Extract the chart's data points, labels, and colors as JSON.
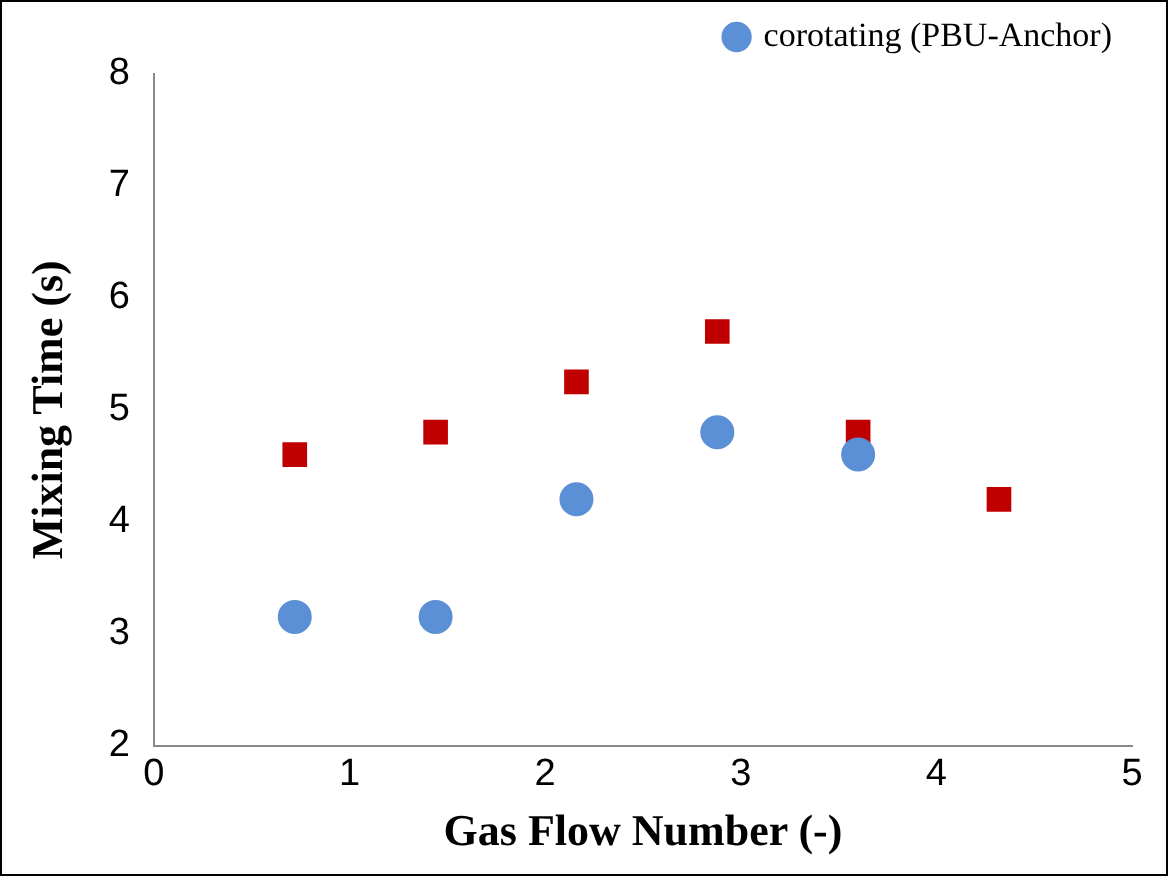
{
  "chart_data": {
    "type": "scatter",
    "xlabel": "Gas Flow Number (-)",
    "ylabel": "Mixing Time (s)",
    "x": [
      0.72,
      1.44,
      2.16,
      2.88,
      3.6,
      4.32
    ],
    "series": [
      {
        "name": "corotating (PBU-Anchor)",
        "color": "#5b8fd6",
        "marker": "circle",
        "values": [
          3.15,
          3.15,
          4.2,
          4.8,
          4.6,
          null
        ]
      },
      {
        "color": "#c00000",
        "marker": "square",
        "values": [
          4.6,
          4.8,
          5.25,
          5.7,
          4.8,
          4.2
        ]
      }
    ],
    "xlim": [
      0,
      5
    ],
    "xticks": [
      0,
      1,
      2,
      3,
      4,
      5
    ],
    "ylim": [
      2,
      8
    ],
    "yticks": [
      2,
      3,
      4,
      5,
      6,
      7,
      8
    ],
    "grid": false,
    "legend": "top right"
  }
}
